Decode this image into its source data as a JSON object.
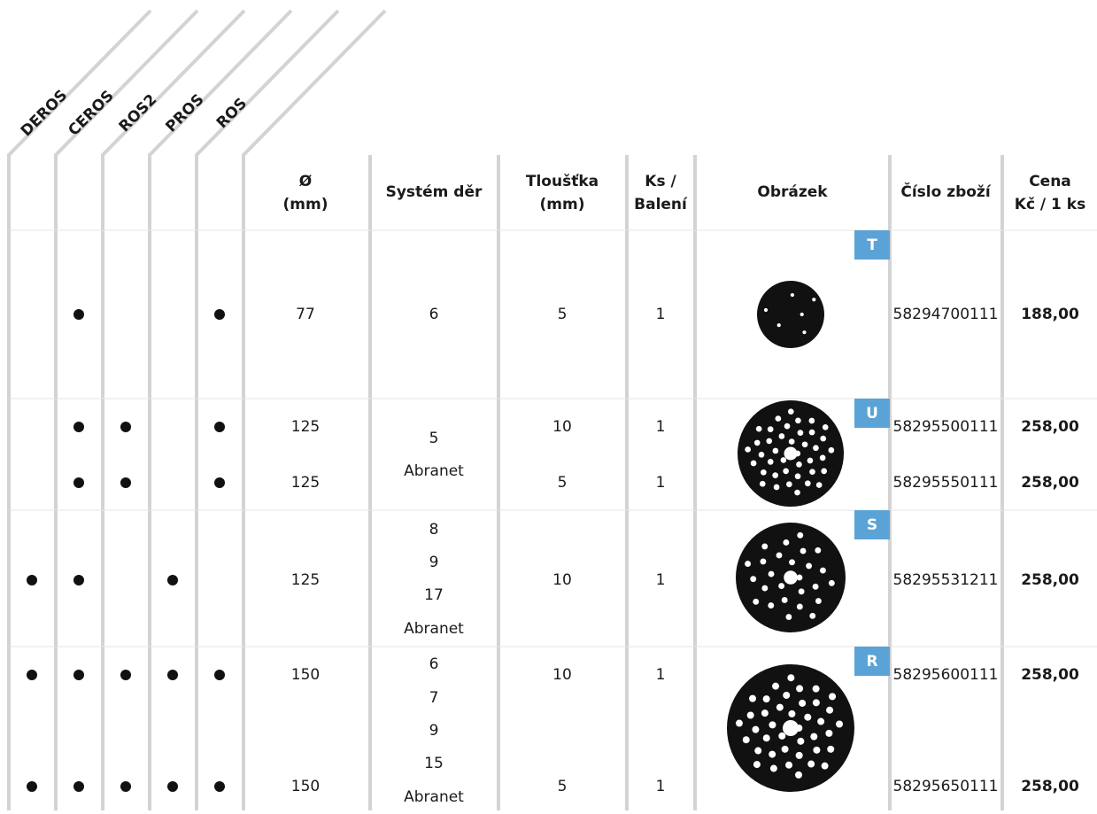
{
  "columns": {
    "compat": [
      "DEROS",
      "CEROS",
      "ROS2",
      "PROS",
      "ROS"
    ],
    "diameter": [
      "Ø",
      "(mm)"
    ],
    "holes": "Systém děr",
    "thickness": [
      "Tloušťka",
      "(mm)"
    ],
    "pack": [
      "Ks /",
      "Balení"
    ],
    "image": "Obrázek",
    "code": "Číslo zboží",
    "price": [
      "Cena",
      "Kč / 1 ks"
    ]
  },
  "groups": [
    {
      "badge": "T",
      "holes": [
        "6"
      ],
      "items": [
        {
          "compat": [
            false,
            true,
            false,
            false,
            true
          ],
          "diameter": 77,
          "thickness": 5,
          "pack": 1,
          "code": "58294700111",
          "price": "188,00"
        }
      ]
    },
    {
      "badge": "U",
      "holes": [
        "5",
        "Abranet"
      ],
      "items": [
        {
          "compat": [
            false,
            true,
            true,
            false,
            true
          ],
          "diameter": 125,
          "thickness": 10,
          "pack": 1,
          "code": "58295500111",
          "price": "258,00"
        },
        {
          "compat": [
            false,
            true,
            true,
            false,
            true
          ],
          "diameter": 125,
          "thickness": 5,
          "pack": 1,
          "code": "58295550111",
          "price": "258,00"
        }
      ]
    },
    {
      "badge": "S",
      "holes": [
        "8",
        "9",
        "17",
        "Abranet"
      ],
      "items": [
        {
          "compat": [
            true,
            true,
            false,
            true,
            false
          ],
          "diameter": 125,
          "thickness": 10,
          "pack": 1,
          "code": "58295531211",
          "price": "258,00"
        }
      ]
    },
    {
      "badge": "R",
      "holes": [
        "6",
        "7",
        "9",
        "15",
        "Abranet"
      ],
      "items": [
        {
          "compat": [
            true,
            true,
            true,
            true,
            true
          ],
          "diameter": 150,
          "thickness": 10,
          "pack": 1,
          "code": "58295600111",
          "price": "258,00"
        },
        {
          "compat": [
            true,
            true,
            true,
            true,
            true
          ],
          "diameter": 150,
          "thickness": 5,
          "pack": 1,
          "code": "58295650111",
          "price": "258,00"
        }
      ]
    }
  ]
}
